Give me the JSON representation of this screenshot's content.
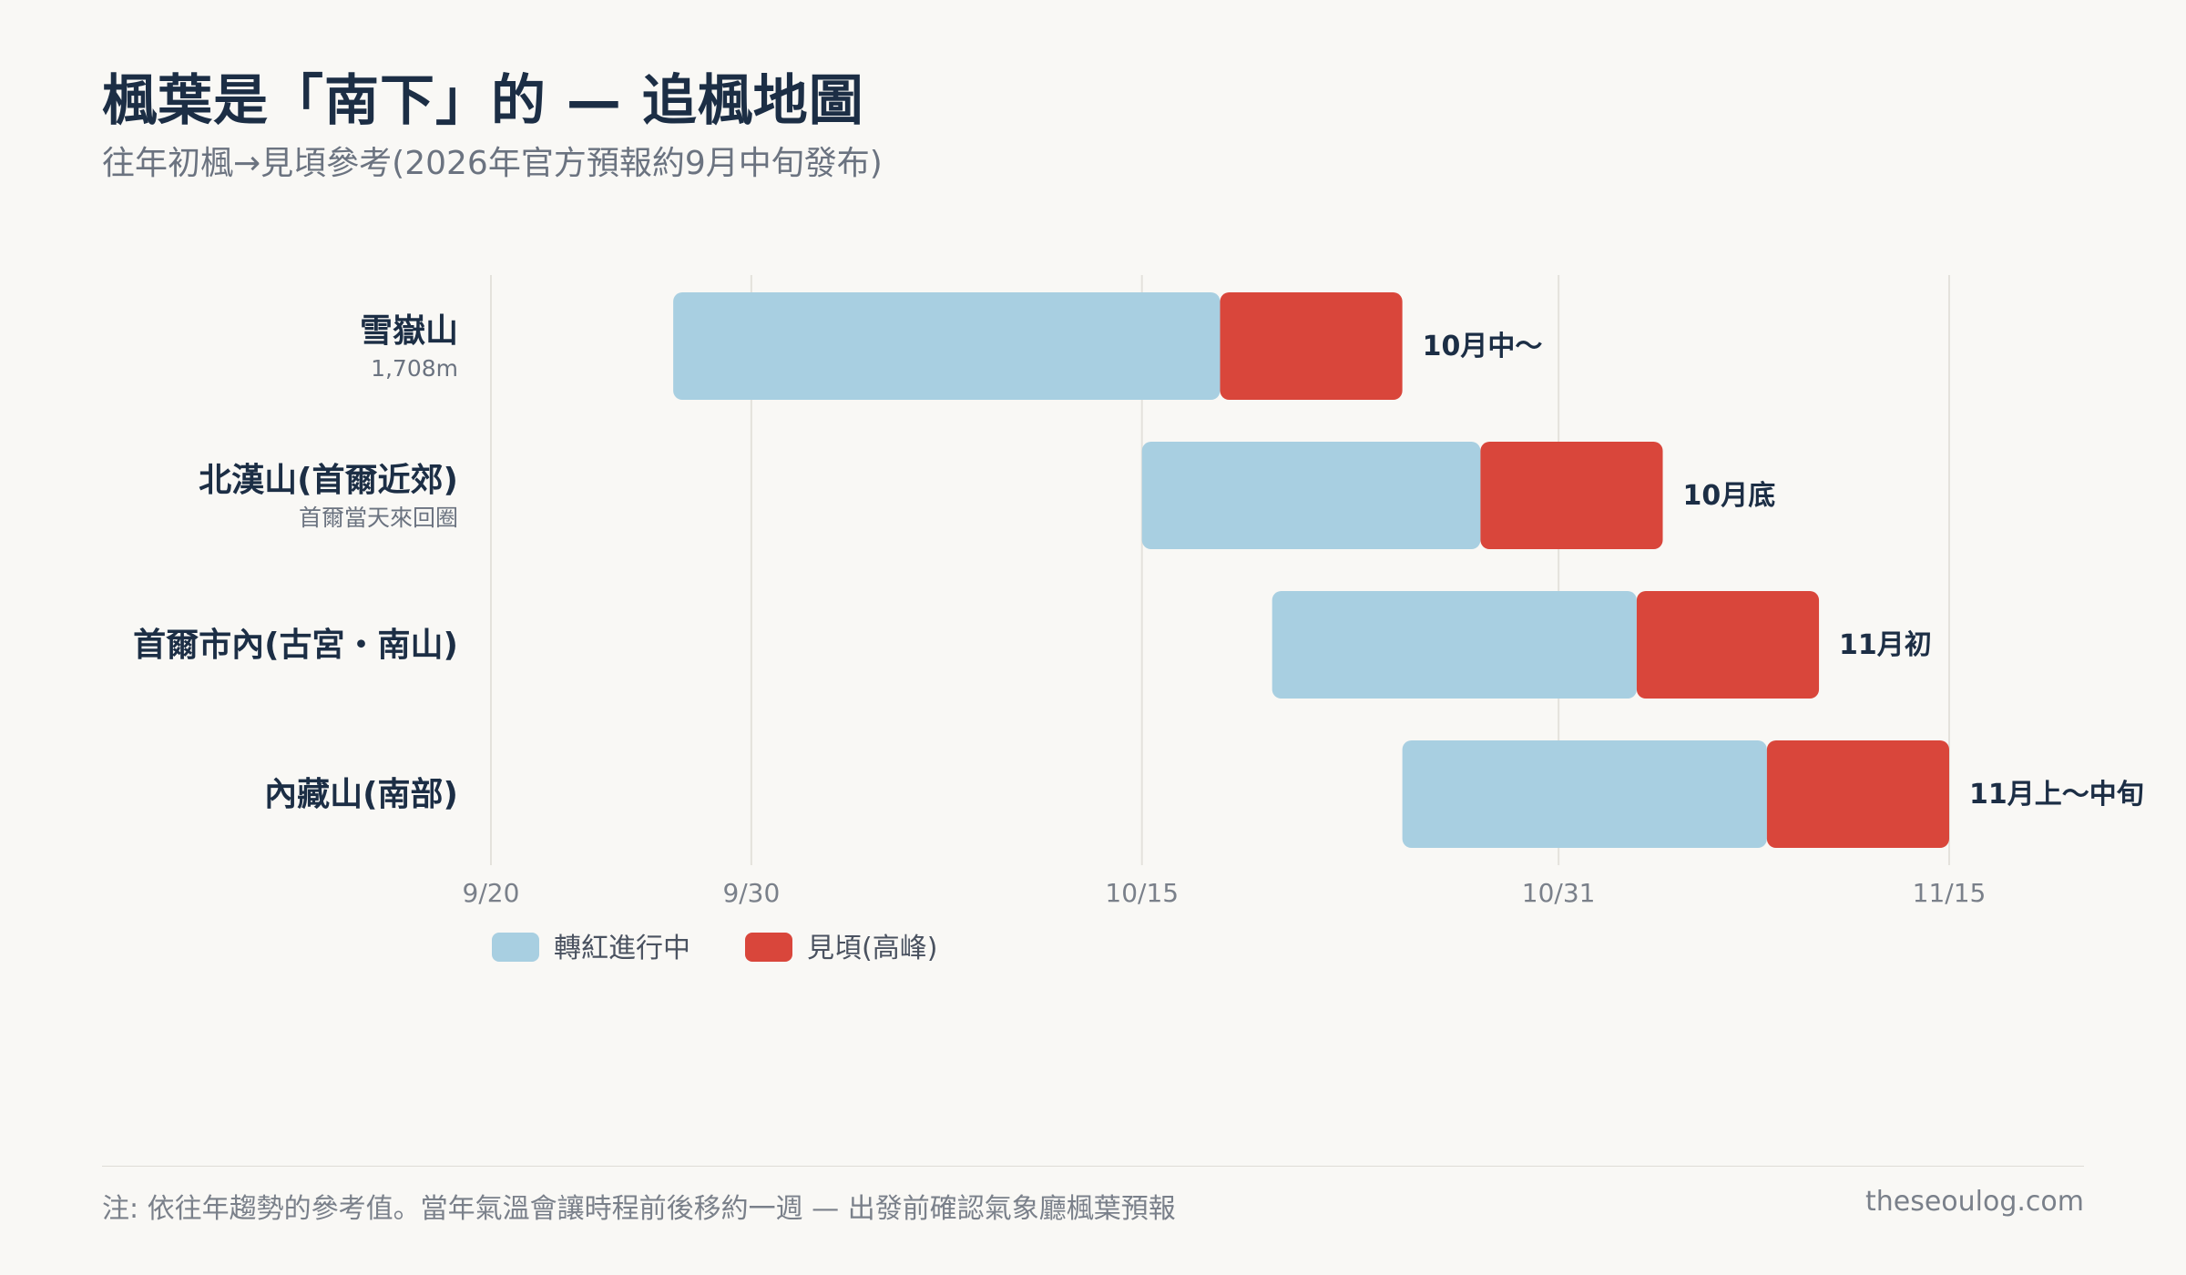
{
  "title": "楓葉是「南下」的 — 追楓地圖",
  "subtitle": "往年初楓→見頃參考(2026年官方預報約9月中旬發布)",
  "footer": {
    "note": "注: 依往年趨勢的參考值。當年氣溫會讓時程前後移約一週 — 出發前確認氣象廳楓葉預報",
    "site": "theseoulog.com"
  },
  "colors": {
    "turning": "#a8cfe1",
    "peak": "#d9463b",
    "text": "#1c2e45",
    "muted": "#7a808a",
    "grid": "#e4e2dc"
  },
  "chart_data": {
    "type": "bar",
    "orientation": "horizontal-stacked-range",
    "x_axis": {
      "type": "date",
      "range": [
        "2026-09-20",
        "2026-11-15"
      ],
      "ticks": [
        {
          "date": "2026-09-20",
          "label": "9/20"
        },
        {
          "date": "2026-09-30",
          "label": "9/30"
        },
        {
          "date": "2026-10-15",
          "label": "10/15"
        },
        {
          "date": "2026-10-31",
          "label": "10/31"
        },
        {
          "date": "2026-11-15",
          "label": "11/15"
        }
      ]
    },
    "grid": true,
    "legend_position": "bottom-left",
    "series": [
      {
        "name": "轉紅進行中",
        "color": "#a8cfe1"
      },
      {
        "name": "見頃(高峰)",
        "color": "#d9463b"
      }
    ],
    "categories": [
      {
        "name": "雪嶽山",
        "sub": "1,708m",
        "turning": [
          "2026-09-27",
          "2026-10-18"
        ],
        "peak": [
          "2026-10-18",
          "2026-10-25"
        ],
        "label": "10月中〜"
      },
      {
        "name": "北漢山(首爾近郊)",
        "sub": "首爾當天來回圈",
        "turning": [
          "2026-10-15",
          "2026-10-28"
        ],
        "peak": [
          "2026-10-28",
          "2026-11-04"
        ],
        "label": "10月底"
      },
      {
        "name": "首爾市內(古宮・南山)",
        "sub": "",
        "turning": [
          "2026-10-20",
          "2026-11-03"
        ],
        "peak": [
          "2026-11-03",
          "2026-11-10"
        ],
        "label": "11月初"
      },
      {
        "name": "內藏山(南部)",
        "sub": "",
        "turning": [
          "2026-10-25",
          "2026-11-08"
        ],
        "peak": [
          "2026-11-08",
          "2026-11-15"
        ],
        "label": "11月上〜中旬"
      }
    ]
  }
}
